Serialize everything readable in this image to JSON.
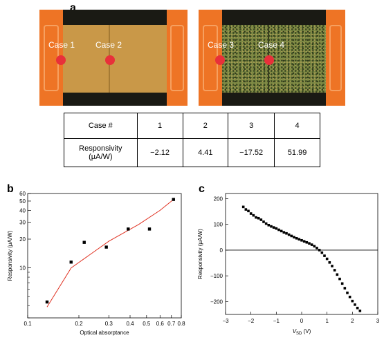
{
  "panels": {
    "a": "a",
    "b": "b",
    "c": "c"
  },
  "photos": {
    "left": {
      "label_1": "Case 1",
      "label_2": "Case 2"
    },
    "right": {
      "label_1": "Case 3",
      "label_2": "Case 4"
    }
  },
  "table": {
    "header": [
      "Case #",
      "1",
      "2",
      "3",
      "4"
    ],
    "row_label_line1": "Responsivity",
    "row_label_line2": "(µA/W)",
    "values": [
      "−2.12",
      "4.41",
      "−17.52",
      "51.99"
    ]
  },
  "colors": {
    "electrode": "#f07a2a",
    "channel_plain": "#c89a4a",
    "channel_dotted": "#6a7a3a",
    "laser_spot": "#e8303a",
    "fit_line": "#e03020"
  },
  "chart_data": [
    {
      "panel": "b",
      "type": "scatter",
      "xlabel": "Optical absorptance",
      "ylabel": "Responsivity (µA/W)",
      "x_scale": "log",
      "y_scale": "log",
      "xlim": [
        0.1,
        0.8
      ],
      "ylim": [
        3,
        60
      ],
      "x_ticks": [
        0.1,
        0.2,
        0.3,
        0.4,
        0.5,
        0.6,
        0.7,
        0.8
      ],
      "x_tick_labels": [
        "0.1",
        "0.2",
        "0.3",
        "0.4",
        "0.5",
        "0.6",
        "0.7",
        "0.8"
      ],
      "y_ticks": [
        10,
        20,
        30,
        40,
        50,
        60
      ],
      "y_tick_labels": [
        "10",
        "20",
        "30",
        "40",
        "50",
        "60"
      ],
      "points": [
        {
          "x": 0.13,
          "y": 4.4
        },
        {
          "x": 0.18,
          "y": 11.5
        },
        {
          "x": 0.215,
          "y": 18.5
        },
        {
          "x": 0.29,
          "y": 16.5
        },
        {
          "x": 0.39,
          "y": 25.5
        },
        {
          "x": 0.52,
          "y": 25.5
        },
        {
          "x": 0.72,
          "y": 52
        }
      ],
      "fit": {
        "x": [
          0.13,
          0.18,
          0.3,
          0.45,
          0.6,
          0.72
        ],
        "y": [
          3.9,
          10,
          19,
          28.5,
          40,
          52
        ]
      }
    },
    {
      "panel": "c",
      "type": "scatter",
      "xlabel_main": "V",
      "xlabel_sub": "SD",
      "xlabel_unit": " (V)",
      "ylabel": "Responsivity (µA/W)",
      "xlim": [
        -3,
        3
      ],
      "ylim": [
        -250,
        220
      ],
      "x_ticks": [
        -3,
        -2,
        -1,
        0,
        1,
        2,
        3
      ],
      "x_tick_labels": [
        "−3",
        "−2",
        "−1",
        "0",
        "1",
        "2",
        "3"
      ],
      "y_ticks": [
        200,
        100,
        0,
        -100,
        -200
      ],
      "y_tick_labels": [
        "200",
        "100",
        "0",
        "−100",
        "−200"
      ],
      "zero_line": true,
      "points": [
        [
          -2.3,
          168
        ],
        [
          -2.2,
          158
        ],
        [
          -2.1,
          152
        ],
        [
          -2.0,
          142
        ],
        [
          -1.9,
          135
        ],
        [
          -1.8,
          127
        ],
        [
          -1.7,
          124
        ],
        [
          -1.6,
          118
        ],
        [
          -1.5,
          110
        ],
        [
          -1.4,
          103
        ],
        [
          -1.3,
          97
        ],
        [
          -1.2,
          92
        ],
        [
          -1.1,
          88
        ],
        [
          -1.0,
          84
        ],
        [
          -0.9,
          79
        ],
        [
          -0.8,
          74
        ],
        [
          -0.7,
          69
        ],
        [
          -0.6,
          65
        ],
        [
          -0.5,
          60
        ],
        [
          -0.4,
          55
        ],
        [
          -0.3,
          50
        ],
        [
          -0.2,
          46
        ],
        [
          -0.1,
          42
        ],
        [
          0.0,
          38
        ],
        [
          0.1,
          34
        ],
        [
          0.2,
          30
        ],
        [
          0.3,
          26
        ],
        [
          0.4,
          21
        ],
        [
          0.5,
          15
        ],
        [
          0.6,
          8
        ],
        [
          0.7,
          0
        ],
        [
          0.8,
          -10
        ],
        [
          0.9,
          -22
        ],
        [
          1.0,
          -34
        ],
        [
          1.1,
          -48
        ],
        [
          1.2,
          -62
        ],
        [
          1.3,
          -78
        ],
        [
          1.4,
          -95
        ],
        [
          1.5,
          -112
        ],
        [
          1.6,
          -130
        ],
        [
          1.7,
          -148
        ],
        [
          1.8,
          -166
        ],
        [
          1.9,
          -182
        ],
        [
          2.0,
          -198
        ],
        [
          2.1,
          -212
        ],
        [
          2.2,
          -225
        ],
        [
          2.3,
          -236
        ]
      ]
    }
  ]
}
